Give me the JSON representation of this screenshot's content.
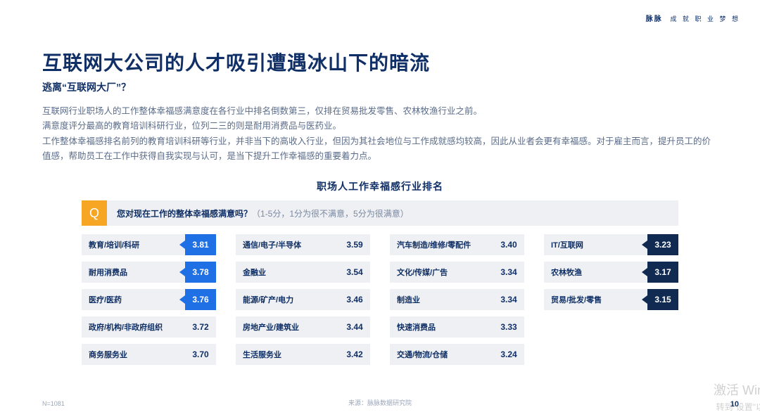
{
  "brand": {
    "name": "脉脉",
    "tagline": "成 就 职 业 梦 想"
  },
  "header": {
    "title": "互联网大公司的人才吸引遭遇冰山下的暗流",
    "subtitle": "逃离“互联网大厂”？"
  },
  "paragraphs": [
    "互联网行业职场人的工作整体幸福感满意度在各行业中排名倒数第三，仅排在贸易批发零售、农林牧渔行业之前。",
    "满意度评分最高的教育培训科研行业，位列二三的则是耐用消费品与医药业。",
    "工作整体幸福感排名前列的教育培训科研等行业，并非当下的高收入行业，但因为其社会地位与工作成就感均较高，因此从业者会更有幸福感。对于雇主而言，提升员工的价值感，帮助员工在工作中获得自我实现与认可，是当下提升工作幸福感的重要着力点。"
  ],
  "chart": {
    "title": "职场人工作幸福感行业排名",
    "question_badge": "Q",
    "question_bold": "您对现在工作的整体幸福感满意吗？",
    "question_sub": "（1-5分，1分为很不满意，5分为很满意）",
    "colors": {
      "row_bg": "#eef0f3",
      "label_color": "#0f2f66",
      "hi_bg": "#1f6fe5",
      "lo_bg": "#102a52",
      "badge_bg": "#f6a623"
    },
    "columns": [
      [
        {
          "label": "教育/培训/科研",
          "value": "3.81",
          "style": "hi"
        },
        {
          "label": "耐用消费品",
          "value": "3.78",
          "style": "hi"
        },
        {
          "label": "医疗/医药",
          "value": "3.76",
          "style": "hi"
        },
        {
          "label": "政府/机构/非政府组织",
          "value": "3.72",
          "style": "plain"
        },
        {
          "label": "商务服务业",
          "value": "3.70",
          "style": "plain"
        }
      ],
      [
        {
          "label": "通信/电子/半导体",
          "value": "3.59",
          "style": "plain"
        },
        {
          "label": "金融业",
          "value": "3.54",
          "style": "plain"
        },
        {
          "label": "能源/矿产/电力",
          "value": "3.46",
          "style": "plain"
        },
        {
          "label": "房地产业/建筑业",
          "value": "3.44",
          "style": "plain"
        },
        {
          "label": "生活服务业",
          "value": "3.42",
          "style": "plain"
        }
      ],
      [
        {
          "label": "汽车制造/维修/零配件",
          "value": "3.40",
          "style": "plain"
        },
        {
          "label": "文化/传媒/广告",
          "value": "3.34",
          "style": "plain"
        },
        {
          "label": "制造业",
          "value": "3.34",
          "style": "plain"
        },
        {
          "label": "快速消费品",
          "value": "3.33",
          "style": "plain"
        },
        {
          "label": "交通/物流/仓储",
          "value": "3.24",
          "style": "plain"
        }
      ],
      [
        {
          "label": "IT/互联网",
          "value": "3.23",
          "style": "lo"
        },
        {
          "label": "农林牧渔",
          "value": "3.17",
          "style": "lo"
        },
        {
          "label": "贸易/批发/零售",
          "value": "3.15",
          "style": "lo"
        }
      ]
    ]
  },
  "footer": {
    "n": "N=1081",
    "source": "来源：脉脉数据研究院",
    "page": "10"
  },
  "watermark": {
    "line1": "激活 Win",
    "line2": "转到\"设置\"以"
  }
}
